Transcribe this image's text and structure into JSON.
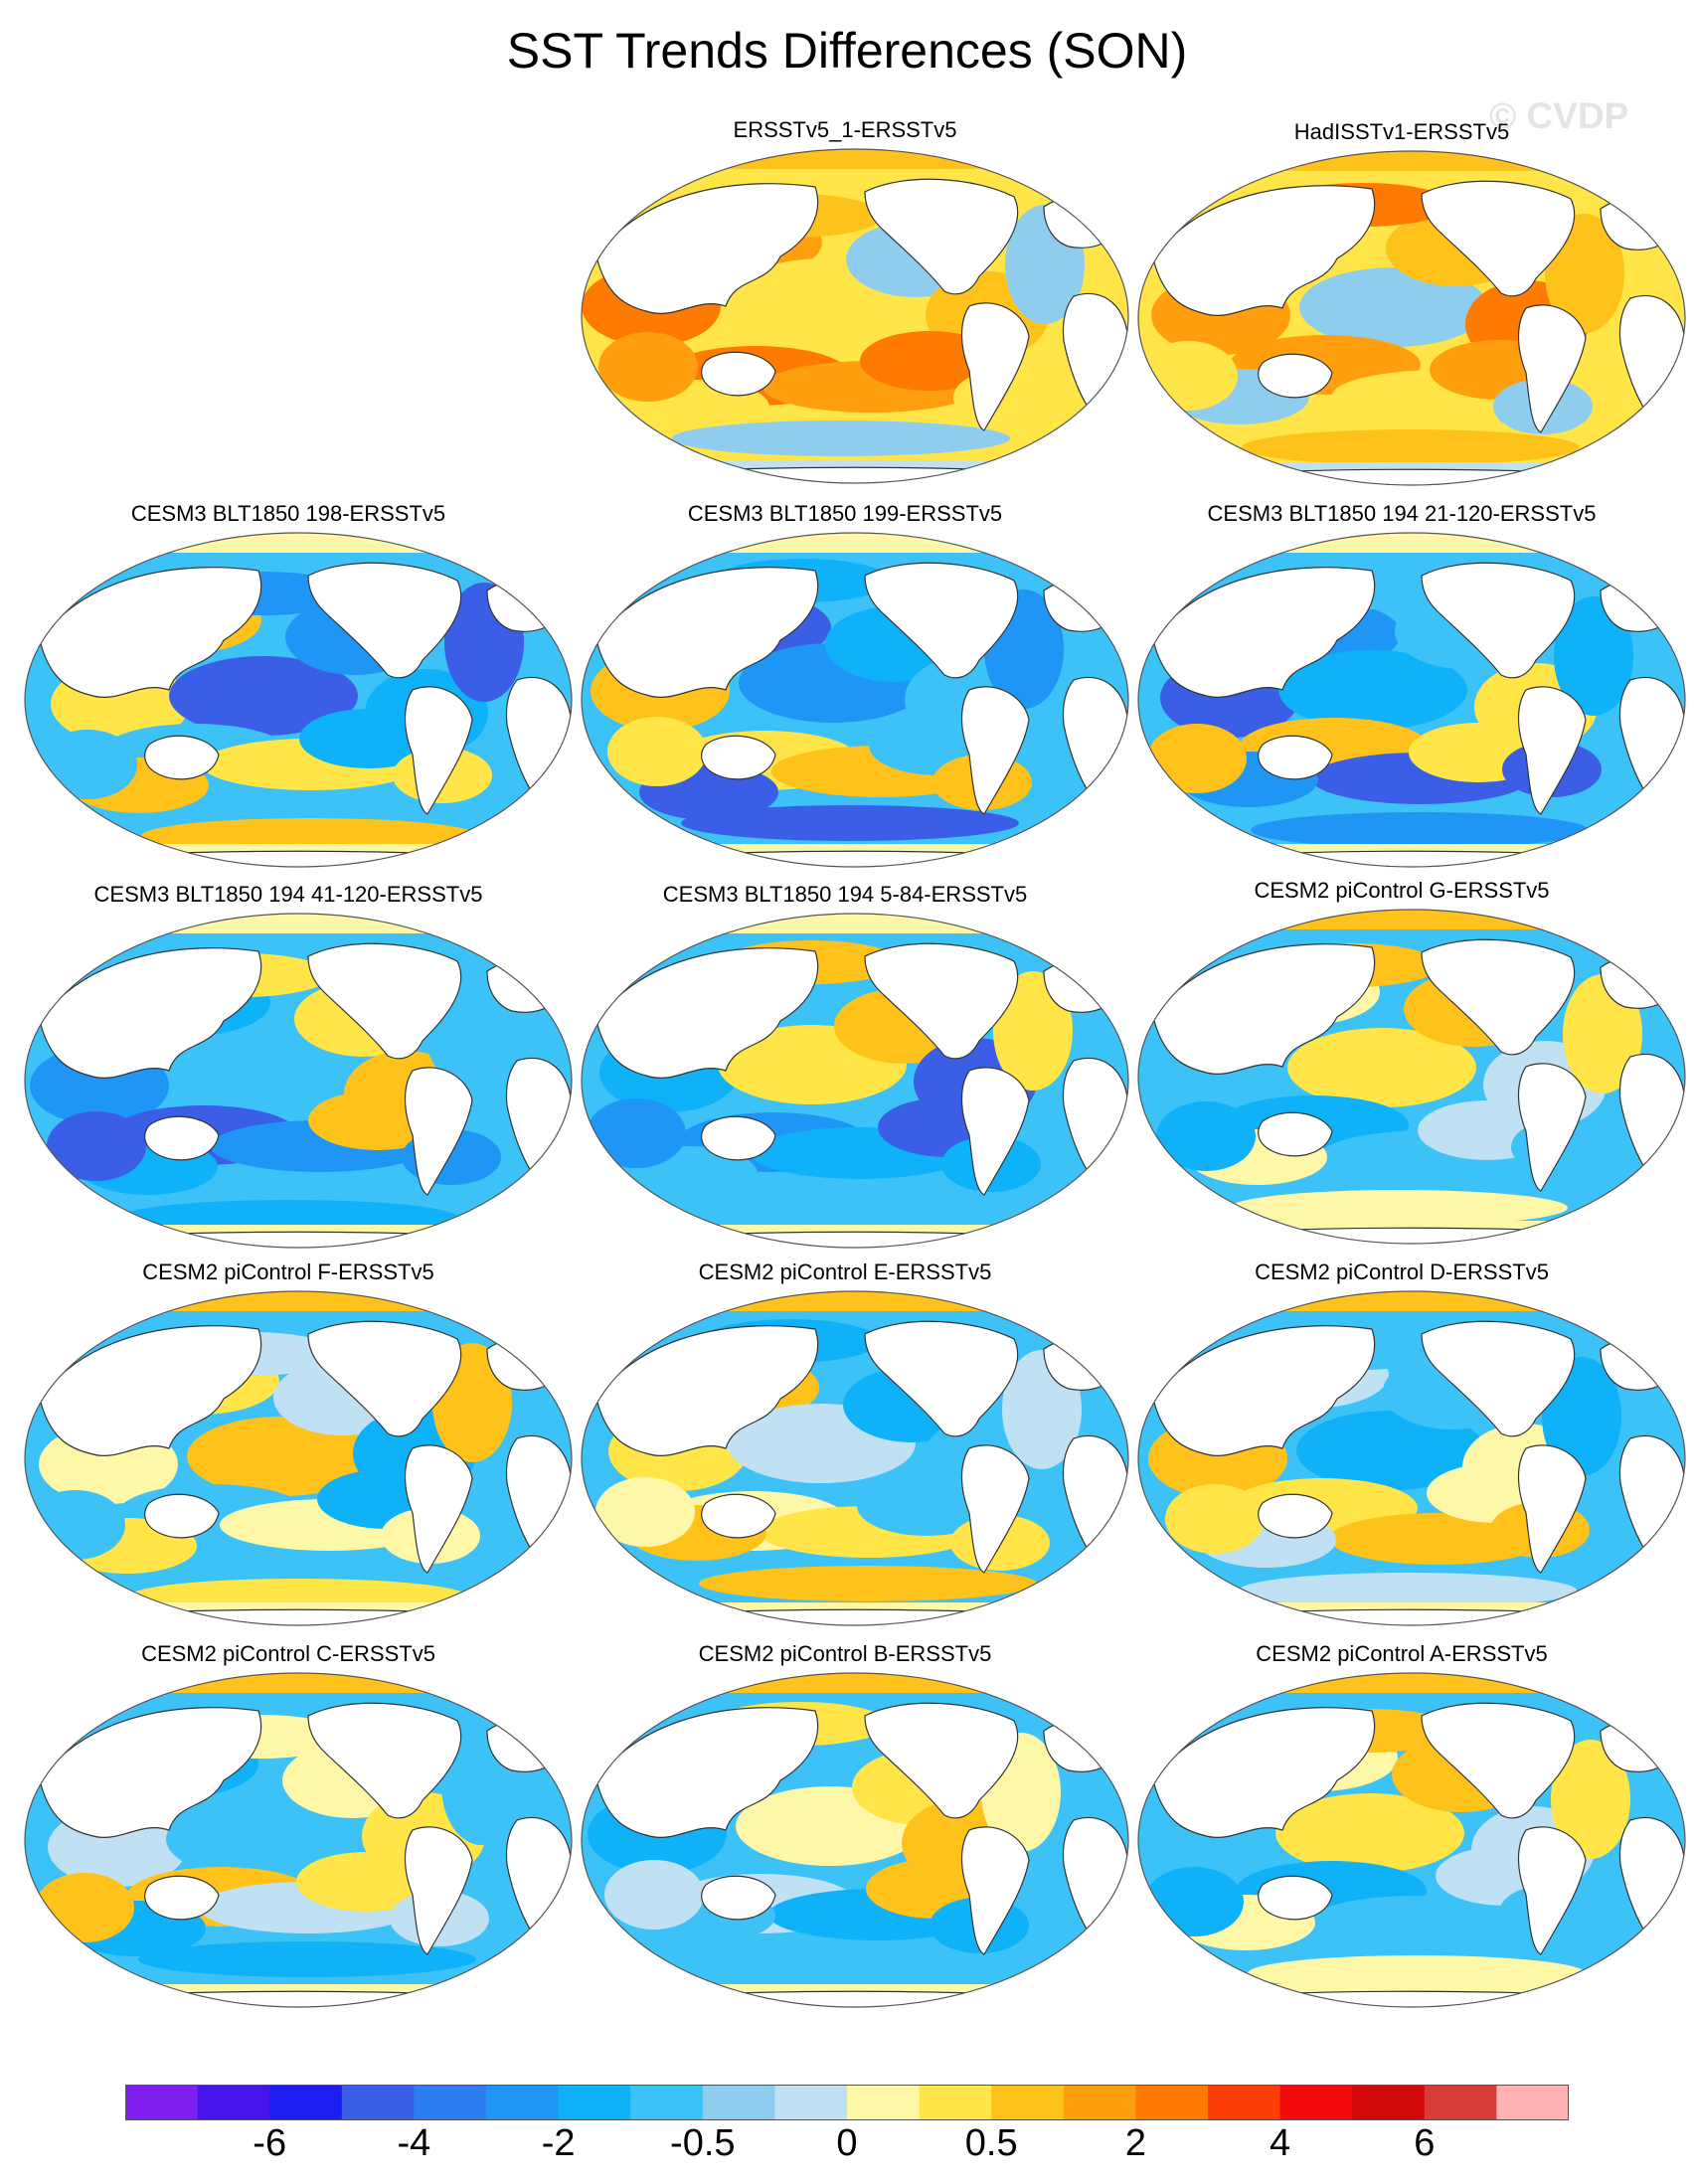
{
  "figure": {
    "title": "SST Trends Differences (SON)",
    "watermark": "© CVDP"
  },
  "colors": {
    "ocean_default": "#8fcdf0",
    "land": "#ffffff",
    "coast": "#333333",
    "palette": [
      "#7f1ff0",
      "#4413ee",
      "#1a1ff0",
      "#3b5ee6",
      "#2c7ef0",
      "#1f96f5",
      "#0fb2f8",
      "#3dc2f7",
      "#8ecdee",
      "#bfe1f3",
      "#fff7a8",
      "#ffe547",
      "#ffc21a",
      "#ff9f0d",
      "#ff7a00",
      "#fc3d06",
      "#f30a0a",
      "#d20808",
      "#d63d3a",
      "#ffb3b3"
    ]
  },
  "colorbar": {
    "labels": [
      "-6",
      "-4",
      "-2",
      "-0.5",
      "0",
      "0.5",
      "2",
      "4",
      "6"
    ],
    "label_boundaries": [
      2,
      4,
      6,
      8,
      10,
      12,
      14,
      16,
      18
    ]
  },
  "panels": [
    {
      "title": "ERSSTv5_1-ERSSTv5",
      "tone": "warm"
    },
    {
      "title": "HadISSTv1-ERSSTv5",
      "tone": "warm"
    },
    {
      "title": "CESM3 BLT1850 198-ERSSTv5",
      "tone": "cool"
    },
    {
      "title": "CESM3 BLT1850 199-ERSSTv5",
      "tone": "cool"
    },
    {
      "title": "CESM3 BLT1850 194 21-120-ERSSTv5",
      "tone": "cool"
    },
    {
      "title": "CESM3 BLT1850 194 41-120-ERSSTv5",
      "tone": "cool"
    },
    {
      "title": "CESM3 BLT1850 194 5-84-ERSSTv5",
      "tone": "cool"
    },
    {
      "title": "CESM2 piControl G-ERSSTv5",
      "tone": "mixed"
    },
    {
      "title": "CESM2 piControl F-ERSSTv5",
      "tone": "mixed"
    },
    {
      "title": "CESM2 piControl E-ERSSTv5",
      "tone": "mixed"
    },
    {
      "title": "CESM2 piControl D-ERSSTv5",
      "tone": "mixed"
    },
    {
      "title": "CESM2 piControl C-ERSSTv5",
      "tone": "mixed"
    },
    {
      "title": "CESM2 piControl B-ERSSTv5",
      "tone": "mixed"
    },
    {
      "title": "CESM2 piControl A-ERSSTv5",
      "tone": "mixed"
    }
  ]
}
